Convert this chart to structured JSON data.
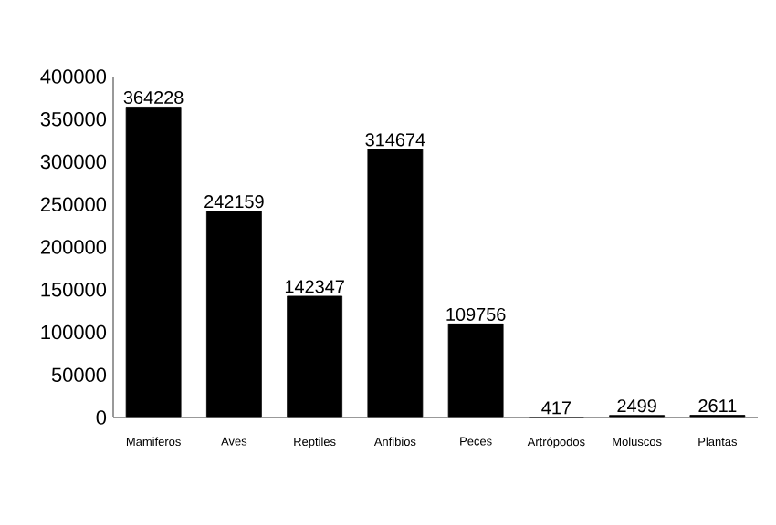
{
  "chart_data": {
    "type": "bar",
    "categories": [
      "Mamiferos",
      "Aves",
      "Reptiles",
      "Anfibios",
      "Peces",
      "Artrópodos",
      "Moluscos",
      "Plantas"
    ],
    "values": [
      364228,
      242159,
      142347,
      314674,
      109756,
      417,
      2499,
      2611
    ],
    "color": "#000000",
    "ylim": [
      0,
      400000
    ],
    "yticks": [
      0,
      50000,
      100000,
      150000,
      200000,
      250000,
      300000,
      350000,
      400000
    ],
    "data_labels": true
  }
}
